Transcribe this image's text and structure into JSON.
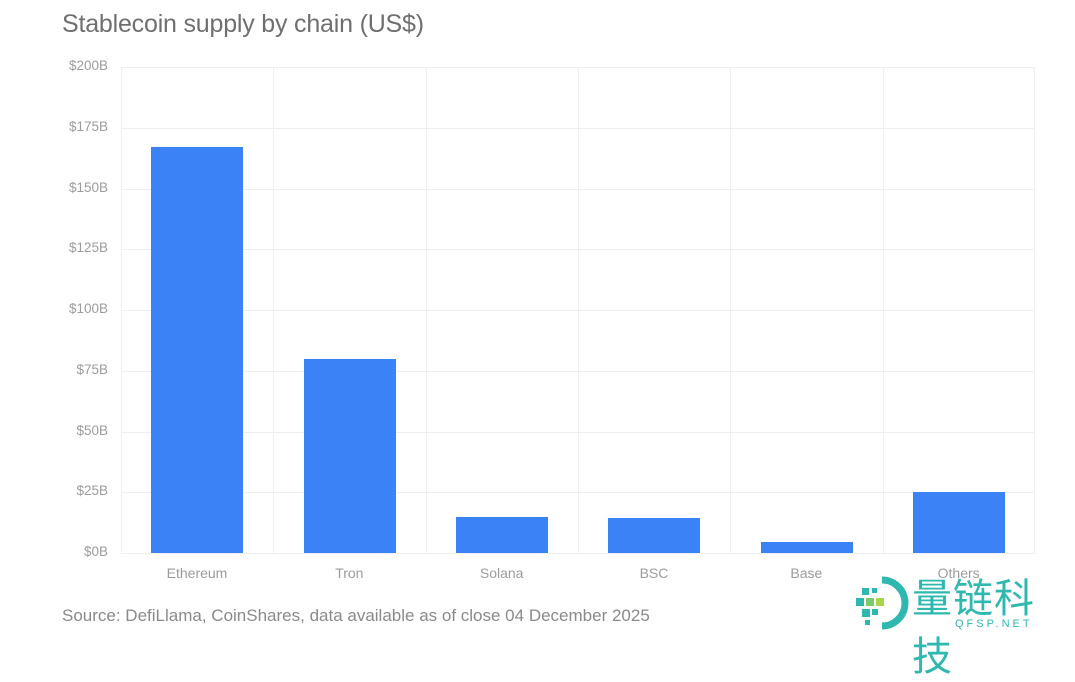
{
  "title": "Stablecoin supply by chain (US$)",
  "source": "Source: DefiLlama, CoinShares, data available as of close 04 December 2025",
  "watermark": {
    "text": "量链科技",
    "sub": "QFSP.NET"
  },
  "y_ticks": [
    "$200B",
    "$175B",
    "$150B",
    "$125B",
    "$100B",
    "$75B",
    "$50B",
    "$25B",
    "$0B"
  ],
  "categories": [
    "Ethereum",
    "Tron",
    "Solana",
    "BSC",
    "Base",
    "Others"
  ],
  "colors": {
    "bar": "#3b82f6"
  },
  "chart_data": {
    "type": "bar",
    "title": "Stablecoin supply by chain (US$)",
    "categories": [
      "Ethereum",
      "Tron",
      "Solana",
      "BSC",
      "Base",
      "Others"
    ],
    "values": [
      167,
      80,
      15,
      14.5,
      4.5,
      25
    ],
    "unit": "US$ billions",
    "xlabel": "",
    "ylabel": "",
    "ylim": [
      0,
      200
    ],
    "yticks": [
      0,
      25,
      50,
      75,
      100,
      125,
      150,
      175,
      200
    ],
    "ytick_labels": [
      "$0B",
      "$25B",
      "$50B",
      "$75B",
      "$100B",
      "$125B",
      "$150B",
      "$175B",
      "$200B"
    ],
    "grid": true,
    "legend": null,
    "annotation": "Source: DefiLlama, CoinShares, data available as of close 04 December 2025"
  }
}
